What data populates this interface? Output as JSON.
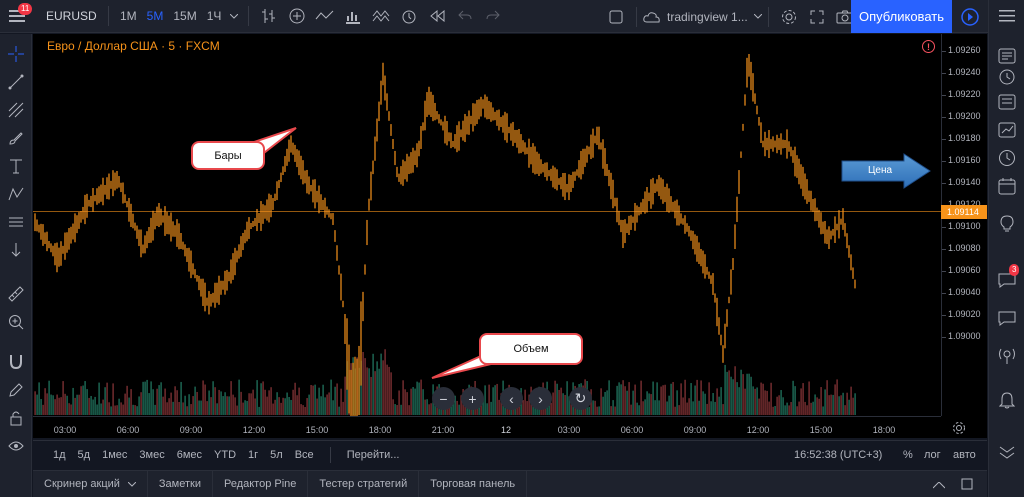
{
  "toolbar": {
    "notifications": "11",
    "symbol": "EURUSD",
    "intervals": [
      "1М",
      "5М",
      "15М",
      "1Ч"
    ],
    "active_interval": "5М",
    "layout_name": "tradingview 1...",
    "publish_label": "Опубликовать"
  },
  "chart": {
    "legend": "Евро / Доллар США · 5 · FXCM",
    "last_price": "1.09114",
    "price_ticks": [
      "1.09260",
      "1.09240",
      "1.09220",
      "1.09200",
      "1.09180",
      "1.09160",
      "1.09140",
      "1.09120",
      "1.09100",
      "1.09080",
      "1.09060",
      "1.09040",
      "1.09020",
      "1.09000"
    ],
    "time_ticks": [
      "03:00",
      "06:00",
      "09:00",
      "12:00",
      "15:00",
      "18:00",
      "21:00",
      "12",
      "03:00",
      "06:00",
      "09:00",
      "12:00",
      "15:00",
      "18:00"
    ],
    "colors": {
      "candle": "#f7931a",
      "volume_up": "#1f6b57",
      "volume_down": "#7a2f33",
      "last_price_line": "#f7931a"
    },
    "annotations": {
      "bars": "Бары",
      "volume": "Объем",
      "price": "Цена"
    }
  },
  "nav": {
    "zoom_out": "−",
    "zoom_in": "+",
    "scroll_left": "‹",
    "scroll_right": "›",
    "reset": "↻"
  },
  "range_bar": {
    "ranges": [
      "1д",
      "5д",
      "1мес",
      "3мес",
      "6мес",
      "YTD",
      "1г",
      "5л",
      "Все"
    ],
    "goto": "Перейти...",
    "clock": "16:52:38 (UTC+3)",
    "percent": "%",
    "log": "лог",
    "auto": "авто"
  },
  "footer": {
    "tabs": [
      "Скринер акций",
      "Заметки",
      "Редактор Pine",
      "Тестер стратегий",
      "Торговая панель"
    ]
  },
  "right_sidebar": {
    "chat_badge": "3"
  }
}
